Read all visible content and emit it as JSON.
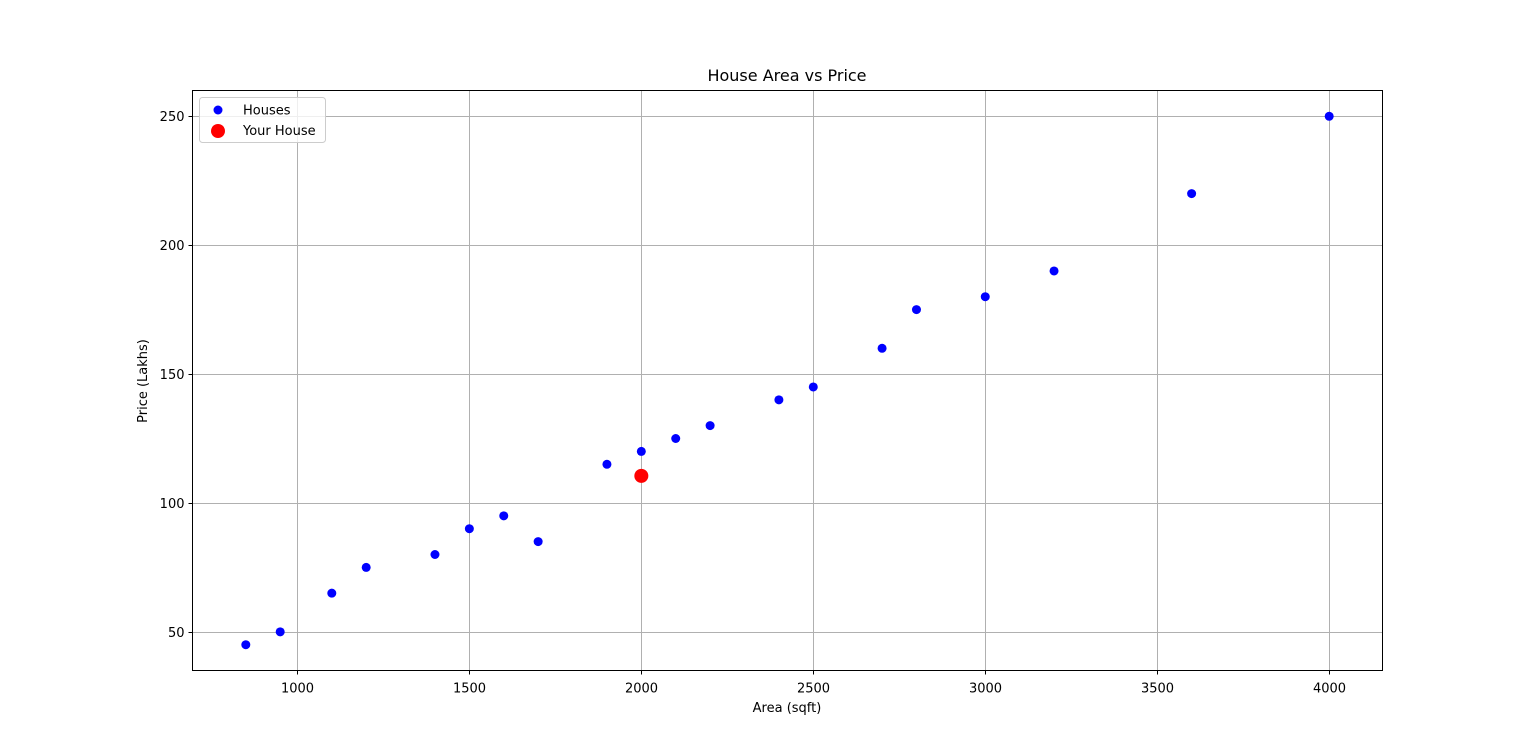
{
  "chart_data": {
    "type": "scatter",
    "title": "House Area vs Price",
    "xlabel": "Area (sqft)",
    "ylabel": "Price (Lakhs)",
    "xlim": [
      695,
      4155
    ],
    "ylim": [
      35,
      260
    ],
    "xticks": [
      1000,
      1500,
      2000,
      2500,
      3000,
      3500,
      4000
    ],
    "yticks": [
      50,
      100,
      150,
      200,
      250
    ],
    "grid": true,
    "legend_position": "top-left",
    "series": [
      {
        "name": "Houses",
        "color": "#0000ff",
        "marker_size": "small",
        "points": [
          {
            "x": 850,
            "y": 45
          },
          {
            "x": 950,
            "y": 50
          },
          {
            "x": 1100,
            "y": 65
          },
          {
            "x": 1200,
            "y": 75
          },
          {
            "x": 1400,
            "y": 80
          },
          {
            "x": 1500,
            "y": 90
          },
          {
            "x": 1600,
            "y": 95
          },
          {
            "x": 1700,
            "y": 85
          },
          {
            "x": 1900,
            "y": 115
          },
          {
            "x": 2000,
            "y": 120
          },
          {
            "x": 2100,
            "y": 125
          },
          {
            "x": 2200,
            "y": 130
          },
          {
            "x": 2400,
            "y": 140
          },
          {
            "x": 2500,
            "y": 145
          },
          {
            "x": 2700,
            "y": 160
          },
          {
            "x": 2800,
            "y": 175
          },
          {
            "x": 3000,
            "y": 180
          },
          {
            "x": 3200,
            "y": 190
          },
          {
            "x": 3600,
            "y": 220
          },
          {
            "x": 4000,
            "y": 250
          }
        ]
      },
      {
        "name": "Your House",
        "color": "#ff0000",
        "marker_size": "large",
        "points": [
          {
            "x": 2000,
            "y": 110.5
          }
        ]
      }
    ]
  }
}
